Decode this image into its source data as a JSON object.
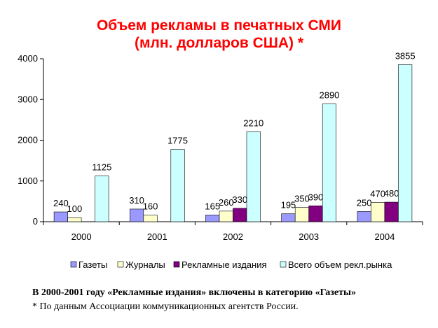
{
  "chart_data": {
    "type": "bar",
    "title": "Объем рекламы в печатных СМИ",
    "subtitle": "(млн. долларов США) *",
    "categories": [
      "2000",
      "2001",
      "2002",
      "2003",
      "2004"
    ],
    "ylim": [
      0,
      4000
    ],
    "yticks": [
      0,
      1000,
      2000,
      3000,
      4000
    ],
    "grid": false,
    "legend_position": "bottom",
    "series": [
      {
        "name": "Газеты",
        "color": "#9999ff",
        "values": [
          240,
          310,
          165,
          195,
          250
        ]
      },
      {
        "name": "Журналы",
        "color": "#ffffcc",
        "values": [
          100,
          160,
          260,
          350,
          470
        ]
      },
      {
        "name": "Рекламные издания",
        "color": "#800080",
        "values": [
          null,
          null,
          330,
          390,
          480
        ]
      },
      {
        "name": "Всего объем рекл.рынка",
        "color": "#ccffff",
        "values": [
          1125,
          1775,
          2210,
          2890,
          3855
        ]
      }
    ],
    "data_labels": [
      [
        "240",
        "310",
        "165",
        "195",
        "250"
      ],
      [
        "100",
        "160",
        "260",
        "350",
        "470"
      ],
      [
        null,
        null,
        "330",
        "390",
        "480"
      ],
      [
        "1125",
        "1775",
        "2210",
        "2890",
        "3855"
      ]
    ]
  },
  "notes": {
    "line1": "В 2000-2001 году «Рекламные издания» включены в категорию «Газеты»",
    "line2": "* По данным Ассоциации коммуникационных агентств России."
  }
}
